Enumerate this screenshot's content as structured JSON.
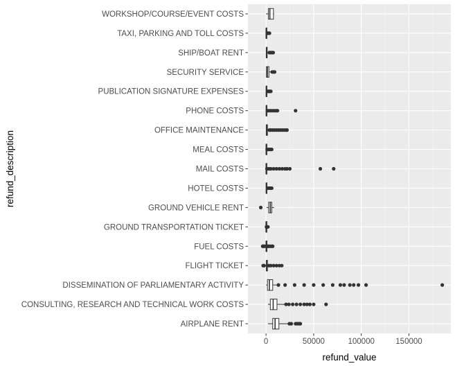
{
  "chart_data": {
    "type": "boxplot",
    "orientation": "horizontal",
    "xlabel": "refund_value",
    "ylabel": "refund_description",
    "xlim": [
      -19000,
      194000
    ],
    "x_ticks": [
      0,
      50000,
      100000,
      150000
    ],
    "x_tick_labels": [
      "0",
      "50000",
      "100000",
      "150000"
    ],
    "grid": true,
    "colors": {
      "panel_bg": "#ebebeb",
      "grid_major": "#ffffff",
      "grid_minor": "#f4f4f4",
      "box_fill": "#ffffff",
      "box_line": "#333333",
      "outlier": "#333333"
    },
    "categories": [
      "AIRPLANE RENT",
      "CONSULTING, RESEARCH AND TECHNICAL WORK COSTS",
      "DISSEMINATION OF PARLIAMENTARY ACTIVITY",
      "FLIGHT TICKET",
      "FUEL COSTS",
      "GROUND TRANSPORTATION TICKET",
      "GROUND VEHICLE RENT",
      "HOTEL COSTS",
      "MAIL COSTS",
      "MEAL COSTS",
      "OFFICE MAINTENANCE",
      "PHONE COSTS",
      "PUBLICATION SIGNATURE EXPENSES",
      "SECURITY SERVICE",
      "SHIP/BOAT RENT",
      "TAXI, PARKING AND TOLL COSTS",
      "WORKSHOP/COURSE/EVENT COSTS"
    ],
    "boxes": [
      {
        "category": "AIRPLANE RENT",
        "whisker_low": 2000,
        "q1": 7000,
        "median": 9500,
        "q3": 13500,
        "whisker_high": 23000,
        "outliers": [
          24500,
          26500,
          31000,
          32500,
          34000,
          35500,
          36000
        ]
      },
      {
        "category": "CONSULTING, RESEARCH AND TECHNICAL WORK COSTS",
        "whisker_low": 2000,
        "q1": 4500,
        "median": 7500,
        "q3": 11500,
        "whisker_high": 20000,
        "outliers": [
          21000,
          24000,
          28000,
          32000,
          36000,
          40000,
          43000,
          46000,
          50000,
          63000
        ]
      },
      {
        "category": "DISSEMINATION OF PARLIAMENTARY ACTIVITY",
        "whisker_low": 0,
        "q1": 1500,
        "median": 3500,
        "q3": 7000,
        "whisker_high": 12000,
        "outliers": [
          13000,
          20000,
          30000,
          40000,
          50000,
          60000,
          70000,
          78000,
          82000,
          88000,
          92000,
          97000,
          105000,
          185000
        ]
      },
      {
        "category": "FLIGHT TICKET",
        "whisker_low": -300,
        "q1": 300,
        "median": 700,
        "q3": 1500,
        "whisker_high": 2500,
        "outliers": [
          -3000,
          -2000,
          3000,
          5000,
          8000,
          11000,
          14000,
          16500
        ]
      },
      {
        "category": "FUEL COSTS",
        "whisker_low": 0,
        "q1": 100,
        "median": 200,
        "q3": 500,
        "whisker_high": 900,
        "outliers": [
          -3500,
          -2500,
          -1500,
          1200,
          2000,
          3000,
          4500,
          6000,
          7000
        ]
      },
      {
        "category": "GROUND TRANSPORTATION TICKET",
        "whisker_low": 0,
        "q1": 20,
        "median": 50,
        "q3": 150,
        "whisker_high": 300,
        "outliers": [
          500,
          1000,
          1500,
          2000
        ]
      },
      {
        "category": "GROUND VEHICLE RENT",
        "whisker_low": 500,
        "q1": 2800,
        "median": 4500,
        "q3": 6000,
        "whisker_high": 8500,
        "outliers": [
          -5500
        ]
      },
      {
        "category": "HOTEL COSTS",
        "whisker_low": 0,
        "q1": 100,
        "median": 300,
        "q3": 700,
        "whisker_high": 1500,
        "outliers": [
          2000,
          3000,
          4000,
          5000,
          6000
        ]
      },
      {
        "category": "MAIL COSTS",
        "whisker_low": 0,
        "q1": 30,
        "median": 100,
        "q3": 300,
        "whisker_high": 700,
        "outliers": [
          1000,
          3000,
          5000,
          8000,
          11000,
          14000,
          17000,
          20000,
          22000,
          25000,
          57000,
          71000
        ]
      },
      {
        "category": "MEAL COSTS",
        "whisker_low": 0,
        "q1": 50,
        "median": 150,
        "q3": 400,
        "whisker_high": 900,
        "outliers": [
          1200,
          2000,
          3000,
          4000,
          5000,
          6000
        ]
      },
      {
        "category": "OFFICE MAINTENANCE",
        "whisker_low": 0,
        "q1": 200,
        "median": 700,
        "q3": 1500,
        "whisker_high": 3000,
        "outliers": [
          3500,
          5000,
          7000,
          9000,
          11000,
          13000,
          15000,
          17000,
          19000,
          21000,
          22000
        ]
      },
      {
        "category": "PHONE COSTS",
        "whisker_low": 0,
        "q1": 100,
        "median": 300,
        "q3": 600,
        "whisker_high": 1200,
        "outliers": [
          1500,
          3000,
          5000,
          7000,
          9000,
          11000,
          12000,
          31000
        ]
      },
      {
        "category": "PUBLICATION SIGNATURE EXPENSES",
        "whisker_low": 0,
        "q1": 100,
        "median": 300,
        "q3": 700,
        "whisker_high": 1500,
        "outliers": [
          2000,
          3000,
          4000,
          5000
        ]
      },
      {
        "category": "SECURITY SERVICE",
        "whisker_low": 0,
        "q1": 400,
        "median": 1500,
        "q3": 3000,
        "whisker_high": 5500,
        "outliers": [
          6500,
          8000,
          9000
        ]
      },
      {
        "category": "SHIP/BOAT RENT",
        "whisker_low": 0,
        "q1": 200,
        "median": 600,
        "q3": 1200,
        "whisker_high": 2500,
        "outliers": [
          3500,
          5000,
          6500,
          7500
        ]
      },
      {
        "category": "TAXI, PARKING AND TOLL COSTS",
        "whisker_low": 0,
        "q1": 50,
        "median": 150,
        "q3": 400,
        "whisker_high": 900,
        "outliers": [
          1300,
          2000,
          3000,
          3600
        ]
      },
      {
        "category": "WORKSHOP/COURSE/EVENT COSTS",
        "whisker_low": 0,
        "q1": 2500,
        "median": 4000,
        "q3": 7800,
        "whisker_high": 8500,
        "outliers": []
      }
    ]
  }
}
